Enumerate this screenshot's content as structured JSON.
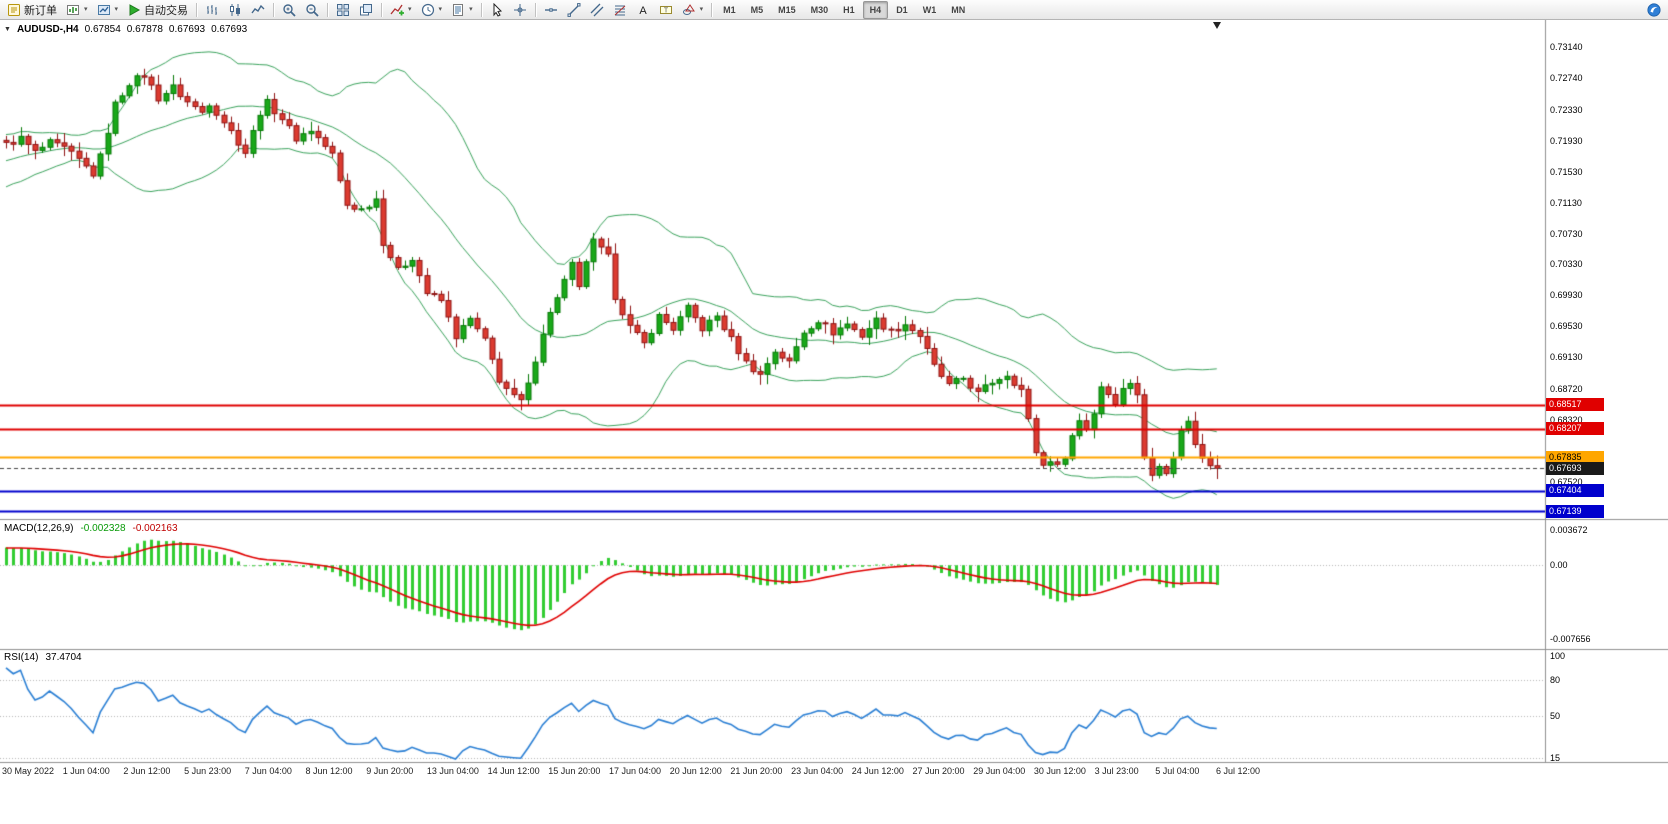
{
  "toolbar": {
    "groups": [
      {
        "name": "trade",
        "items": [
          {
            "name": "new-order-button",
            "icon": "new-order-icon",
            "label": "新订单"
          },
          {
            "name": "new-chart-button",
            "icon": "new-chart-icon",
            "caret": true
          },
          {
            "name": "profiles-button",
            "icon": "profiles-icon",
            "caret": true
          },
          {
            "name": "auto-trading-button",
            "icon": "play-icon",
            "label": "自动交易"
          }
        ]
      },
      {
        "name": "chart-modes",
        "items": [
          {
            "name": "bar-chart-button",
            "icon": "bar-chart-icon"
          },
          {
            "name": "candlestick-chart-button",
            "icon": "candlestick-icon"
          },
          {
            "name": "line-chart-button",
            "icon": "line-chart-icon"
          }
        ]
      },
      {
        "name": "zoom",
        "items": [
          {
            "name": "zoom-in-button",
            "icon": "zoom-in-icon"
          },
          {
            "name": "zoom-out-button",
            "icon": "zoom-out-icon"
          }
        ]
      },
      {
        "name": "windows",
        "items": [
          {
            "name": "tile-windows-button",
            "icon": "tile-windows-icon"
          },
          {
            "name": "cascade-windows-button",
            "icon": "cascade-windows-icon"
          }
        ]
      },
      {
        "name": "chart-tools",
        "items": [
          {
            "name": "indicators-button",
            "icon": "indicator-plus-icon",
            "caret": true
          },
          {
            "name": "periods-button",
            "icon": "clock-icon",
            "caret": true
          },
          {
            "name": "templates-button",
            "icon": "template-icon",
            "caret": true
          }
        ]
      },
      {
        "name": "pointer",
        "items": [
          {
            "name": "cursor-button",
            "icon": "cursor-icon"
          },
          {
            "name": "crosshair-button",
            "icon": "crosshair-icon"
          }
        ]
      },
      {
        "name": "objects",
        "items": [
          {
            "name": "horizontal-line-button",
            "icon": "horizontal-line-icon"
          },
          {
            "name": "trendline-button",
            "icon": "trendline-icon"
          },
          {
            "name": "equidistant-channel-button",
            "icon": "channel-icon"
          },
          {
            "name": "fibonacci-retracement-button",
            "icon": "fibonacci-icon"
          },
          {
            "name": "text-button",
            "icon": "text-icon"
          },
          {
            "name": "text-label-button",
            "icon": "text-label-icon"
          },
          {
            "name": "shapes-button",
            "icon": "shapes-icon",
            "caret": true
          }
        ]
      },
      {
        "name": "timeframes",
        "items": [
          {
            "name": "timeframe-m1-button",
            "label": "M1"
          },
          {
            "name": "timeframe-m5-button",
            "label": "M5"
          },
          {
            "name": "timeframe-m15-button",
            "label": "M15"
          },
          {
            "name": "timeframe-m30-button",
            "label": "M30"
          },
          {
            "name": "timeframe-h1-button",
            "label": "H1"
          },
          {
            "name": "timeframe-h4-button",
            "label": "H4",
            "active": true
          },
          {
            "name": "timeframe-d1-button",
            "label": "D1"
          },
          {
            "name": "timeframe-w1-button",
            "label": "W1"
          },
          {
            "name": "timeframe-mn-button",
            "label": "MN"
          }
        ]
      }
    ],
    "right_items": [
      {
        "name": "mql5-community-button",
        "icon": "community-icon"
      }
    ]
  },
  "chart_header": {
    "symbol": "AUDUSD-,H4",
    "open": "0.67854",
    "high": "0.67878",
    "low": "0.67693",
    "close": "0.67693"
  },
  "macd": {
    "name": "MACD(12,26,9)",
    "value_main": "-0.002328",
    "value_signal": "-0.002163"
  },
  "rsi": {
    "name": "RSI(14)",
    "value": "37.4704"
  },
  "chart_data": {
    "type": "candlestick",
    "symbol": "AUDUSD-",
    "timeframe": "H4",
    "bars": 168,
    "noise_amp": 0.0009,
    "wick_amp": 0.0011,
    "warmup": {
      "bars": 40,
      "start": 0.708
    },
    "price_anchors": [
      [
        0,
        0.7188
      ],
      [
        2,
        0.7196
      ],
      [
        4,
        0.7178
      ],
      [
        6,
        0.719
      ],
      [
        8,
        0.7183
      ],
      [
        10,
        0.7168
      ],
      [
        12,
        0.715
      ],
      [
        13,
        0.7172
      ],
      [
        15,
        0.724
      ],
      [
        17,
        0.7268
      ],
      [
        19,
        0.7278
      ],
      [
        21,
        0.7248
      ],
      [
        23,
        0.7262
      ],
      [
        25,
        0.7243
      ],
      [
        27,
        0.723
      ],
      [
        28,
        0.7242
      ],
      [
        30,
        0.7218
      ],
      [
        31,
        0.7205
      ],
      [
        33,
        0.7178
      ],
      [
        35,
        0.723
      ],
      [
        36,
        0.7242
      ],
      [
        38,
        0.7222
      ],
      [
        40,
        0.7196
      ],
      [
        42,
        0.7207
      ],
      [
        44,
        0.7186
      ],
      [
        45,
        0.7175
      ],
      [
        46,
        0.714
      ],
      [
        47,
        0.711
      ],
      [
        49,
        0.7104
      ],
      [
        51,
        0.7118
      ],
      [
        52,
        0.7062
      ],
      [
        54,
        0.7025
      ],
      [
        56,
        0.7042
      ],
      [
        58,
        0.6996
      ],
      [
        60,
        0.6986
      ],
      [
        62,
        0.694
      ],
      [
        64,
        0.6962
      ],
      [
        66,
        0.6934
      ],
      [
        68,
        0.6884
      ],
      [
        70,
        0.6861
      ],
      [
        71,
        0.6856
      ],
      [
        72,
        0.6876
      ],
      [
        74,
        0.6946
      ],
      [
        76,
        0.6992
      ],
      [
        78,
        0.7032
      ],
      [
        79,
        0.7001
      ],
      [
        80,
        0.7038
      ],
      [
        81,
        0.7062
      ],
      [
        83,
        0.7042
      ],
      [
        84,
        0.6992
      ],
      [
        86,
        0.6952
      ],
      [
        88,
        0.693
      ],
      [
        90,
        0.6966
      ],
      [
        92,
        0.695
      ],
      [
        94,
        0.6976
      ],
      [
        96,
        0.695
      ],
      [
        98,
        0.6966
      ],
      [
        100,
        0.6936
      ],
      [
        102,
        0.6906
      ],
      [
        104,
        0.689
      ],
      [
        106,
        0.6921
      ],
      [
        108,
        0.6906
      ],
      [
        110,
        0.6946
      ],
      [
        112,
        0.6961
      ],
      [
        114,
        0.6945
      ],
      [
        116,
        0.6956
      ],
      [
        118,
        0.6941
      ],
      [
        120,
        0.6961
      ],
      [
        122,
        0.6946
      ],
      [
        124,
        0.6956
      ],
      [
        126,
        0.6941
      ],
      [
        128,
        0.6901
      ],
      [
        130,
        0.6876
      ],
      [
        132,
        0.6886
      ],
      [
        134,
        0.6866
      ],
      [
        136,
        0.6881
      ],
      [
        138,
        0.6891
      ],
      [
        140,
        0.6871
      ],
      [
        141,
        0.6831
      ],
      [
        142,
        0.6791
      ],
      [
        143,
        0.6773
      ],
      [
        144,
        0.6781
      ],
      [
        145,
        0.6771
      ],
      [
        146,
        0.6786
      ],
      [
        147,
        0.6811
      ],
      [
        148,
        0.6831
      ],
      [
        149,
        0.6821
      ],
      [
        150,
        0.6841
      ],
      [
        151,
        0.6876
      ],
      [
        152,
        0.6866
      ],
      [
        153,
        0.6856
      ],
      [
        154,
        0.6871
      ],
      [
        155,
        0.6881
      ],
      [
        156,
        0.6866
      ],
      [
        157,
        0.6781
      ],
      [
        158,
        0.6761
      ],
      [
        159,
        0.6776
      ],
      [
        160,
        0.6766
      ],
      [
        161,
        0.6781
      ],
      [
        162,
        0.6821
      ],
      [
        163,
        0.6829
      ],
      [
        164,
        0.6801
      ],
      [
        165,
        0.6786
      ],
      [
        166,
        0.6776
      ],
      [
        167,
        0.67693
      ]
    ],
    "y_axis": {
      "min": 0.6705,
      "max": 0.7344,
      "ticks": [
        "0.73140",
        "0.72740",
        "0.72330",
        "0.71930",
        "0.71530",
        "0.71130",
        "0.70730",
        "0.70330",
        "0.69930",
        "0.69530",
        "0.69130",
        "0.68720",
        "0.68320",
        "0.67520"
      ]
    },
    "levels": [
      {
        "label": "0.68517",
        "value": 0.68517,
        "line_color": "#e00000",
        "box_color": "#e00000",
        "text_color": "#ffffff",
        "style": "solid",
        "width": 2
      },
      {
        "label": "0.68207",
        "value": 0.68207,
        "line_color": "#e00000",
        "box_color": "#e00000",
        "text_color": "#ffffff",
        "style": "solid",
        "width": 2
      },
      {
        "label": "0.67835",
        "value": 0.67835,
        "line_color": "#ffa600",
        "box_color": "#ffa600",
        "text_color": "#000000",
        "style": "solid",
        "width": 2
      },
      {
        "label": "0.67693",
        "value": 0.67693,
        "line_color": "#444444",
        "box_color": "#1a1a1a",
        "text_color": "#ffffff",
        "style": "dash",
        "width": 1
      },
      {
        "label": "0.67404",
        "value": 0.67404,
        "line_color": "#0000cd",
        "box_color": "#0000cd",
        "text_color": "#ffffff",
        "style": "solid",
        "width": 2
      },
      {
        "label": "0.67139",
        "value": 0.67139,
        "line_color": "#0000cd",
        "box_color": "#0000cd",
        "text_color": "#ffffff",
        "style": "solid",
        "width": 2
      }
    ],
    "x_ticks": [
      "30 May 2022",
      "1 Jun 04:00",
      "2 Jun 12:00",
      "5 Jun 23:00",
      "7 Jun 04:00",
      "8 Jun 12:00",
      "9 Jun 20:00",
      "13 Jun 04:00",
      "14 Jun 12:00",
      "15 Jun 20:00",
      "17 Jun 04:00",
      "20 Jun 12:00",
      "21 Jun 20:00",
      "23 Jun 04:00",
      "24 Jun 12:00",
      "27 Jun 20:00",
      "29 Jun 04:00",
      "30 Jun 12:00",
      "3 Jul 23:00",
      "5 Jul 04:00",
      "6 Jul 12:00"
    ],
    "indicators": {
      "bollinger": {
        "period": 20,
        "deviation": 2,
        "color": "#3aa35c"
      },
      "macd": {
        "fast": 12,
        "slow": 26,
        "signal": 9,
        "histogram_color": "#32CD32",
        "signal_color": "#e00000",
        "axis_labels": [
          {
            "text": "0.003672",
            "value": 0.003672
          },
          {
            "text": "0.00",
            "value": 0
          },
          {
            "text": "-0.007656",
            "value": -0.007656
          }
        ]
      },
      "rsi": {
        "period": 14,
        "color": "#2a7fd4",
        "levels": [
          80,
          50,
          15
        ],
        "axis_labels": [
          {
            "text": "100",
            "value": 100
          },
          {
            "text": "80",
            "value": 80
          },
          {
            "text": "50",
            "value": 50
          },
          {
            "text": "15",
            "value": 15
          }
        ]
      }
    }
  }
}
